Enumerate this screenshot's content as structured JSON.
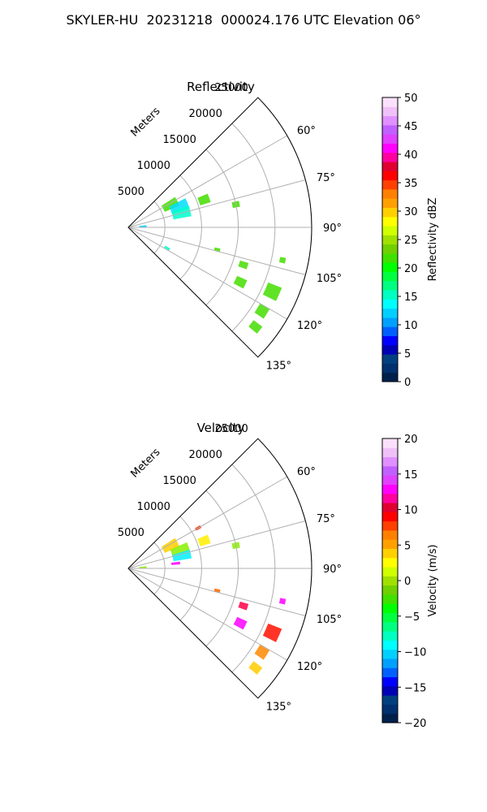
{
  "suptitle": "SKYLER-HU  20231218  000024.176 UTC Elevation 06°",
  "range_label": "Meters",
  "chart_data": [
    {
      "type": "ppi-sector",
      "title": "Reflectivity",
      "range_ticks": [
        5000,
        10000,
        15000,
        20000,
        25000
      ],
      "range_max": 25000,
      "azimuth_range": [
        45,
        135
      ],
      "azimuth_ticks": [
        "60°",
        "75°",
        "90°",
        "105°",
        "120°",
        "135°"
      ],
      "colorbar": {
        "label": "Reflectivity dBZ",
        "min": 0,
        "max": 50,
        "ticks": [
          "0",
          "5",
          "10",
          "15",
          "20",
          "25",
          "30",
          "35",
          "40",
          "45",
          "50"
        ],
        "colors": [
          "#00204c",
          "#00306e",
          "#004080",
          "#0000b4",
          "#0000ff",
          "#0060ff",
          "#00a0ff",
          "#00d0ff",
          "#00ffff",
          "#00ffc0",
          "#00ff80",
          "#00ff40",
          "#00ff00",
          "#40e000",
          "#70d000",
          "#a0e000",
          "#d0ff00",
          "#ffff00",
          "#ffd000",
          "#ffa000",
          "#ff8000",
          "#ff4000",
          "#ff0000",
          "#e00030",
          "#ff00a0",
          "#ff00ff",
          "#e040ff",
          "#c060ff",
          "#e090ff",
          "#f0c0f8",
          "#fbe0fb"
        ]
      },
      "echoes": [
        {
          "az": 62,
          "r": 6500,
          "dr": 2200,
          "daz": 10,
          "color": "#44dd00"
        },
        {
          "az": 68,
          "r": 7500,
          "dr": 2500,
          "daz": 10,
          "color": "#00ddff"
        },
        {
          "az": 75,
          "r": 7500,
          "dr": 2500,
          "daz": 10,
          "color": "#00ffcc"
        },
        {
          "az": 70,
          "r": 11000,
          "dr": 1500,
          "daz": 6,
          "color": "#44dd00"
        },
        {
          "az": 78,
          "r": 15000,
          "dr": 1000,
          "daz": 3,
          "color": "#44dd00"
        },
        {
          "az": 104,
          "r": 12500,
          "dr": 800,
          "daz": 2,
          "color": "#44dd00"
        },
        {
          "az": 108,
          "r": 16500,
          "dr": 1200,
          "daz": 3,
          "color": "#44dd00"
        },
        {
          "az": 116,
          "r": 17000,
          "dr": 1500,
          "daz": 4,
          "color": "#44dd00"
        },
        {
          "az": 114,
          "r": 21500,
          "dr": 2000,
          "daz": 5,
          "color": "#44dd00"
        },
        {
          "az": 122,
          "r": 21500,
          "dr": 1500,
          "daz": 4,
          "color": "#44dd00"
        },
        {
          "az": 128,
          "r": 22000,
          "dr": 1500,
          "daz": 3,
          "color": "#44dd00"
        },
        {
          "az": 102,
          "r": 21500,
          "dr": 800,
          "daz": 2,
          "color": "#44dd00"
        },
        {
          "az": 86,
          "r": 2000,
          "dr": 1000,
          "daz": 6,
          "color": "#00ccff"
        },
        {
          "az": 118,
          "r": 6000,
          "dr": 800,
          "daz": 3,
          "color": "#00ffcc"
        }
      ]
    },
    {
      "type": "ppi-sector",
      "title": "Velocity",
      "range_ticks": [
        5000,
        10000,
        15000,
        20000,
        25000
      ],
      "range_max": 25000,
      "azimuth_range": [
        45,
        135
      ],
      "azimuth_ticks": [
        "60°",
        "75°",
        "90°",
        "105°",
        "120°",
        "135°"
      ],
      "colorbar": {
        "label": "Velocity (m/s)",
        "min": -20,
        "max": 20,
        "ticks": [
          "−20",
          "−15",
          "−10",
          "−5",
          "0",
          "5",
          "10",
          "15",
          "20"
        ],
        "colors": [
          "#00204c",
          "#00306e",
          "#004080",
          "#0000b4",
          "#0000ff",
          "#0060ff",
          "#00a0ff",
          "#00d0ff",
          "#00ffff",
          "#00ffc0",
          "#00ff80",
          "#00ff40",
          "#00ff00",
          "#40e000",
          "#70d000",
          "#a0e000",
          "#d0ff00",
          "#ffff00",
          "#ffd000",
          "#ffa000",
          "#ff8000",
          "#ff4000",
          "#ff0000",
          "#e00030",
          "#ff00a0",
          "#ff00ff",
          "#e040ff",
          "#c060ff",
          "#e090ff",
          "#f0c0f8",
          "#fbe0fb"
        ]
      },
      "echoes": [
        {
          "az": 62,
          "r": 6500,
          "dr": 2200,
          "daz": 10,
          "color": "#ffcc00"
        },
        {
          "az": 70,
          "r": 7500,
          "dr": 2500,
          "daz": 8,
          "color": "#88ee00"
        },
        {
          "az": 77,
          "r": 7500,
          "dr": 2500,
          "daz": 8,
          "color": "#00eeff"
        },
        {
          "az": 84,
          "r": 6500,
          "dr": 1200,
          "daz": 3,
          "color": "#ff00ff"
        },
        {
          "az": 70,
          "r": 11000,
          "dr": 1500,
          "daz": 6,
          "color": "#ffee00"
        },
        {
          "az": 78,
          "r": 15000,
          "dr": 1000,
          "daz": 3,
          "color": "#88ee00"
        },
        {
          "az": 60,
          "r": 11000,
          "dr": 800,
          "daz": 2,
          "color": "#ff2200"
        },
        {
          "az": 104,
          "r": 12500,
          "dr": 800,
          "daz": 2,
          "color": "#ff6600"
        },
        {
          "az": 108,
          "r": 16500,
          "dr": 1200,
          "daz": 3,
          "color": "#ff0044"
        },
        {
          "az": 116,
          "r": 17000,
          "dr": 1500,
          "daz": 4,
          "color": "#ff00ff"
        },
        {
          "az": 114,
          "r": 21500,
          "dr": 2000,
          "daz": 5,
          "color": "#ff1100"
        },
        {
          "az": 122,
          "r": 21500,
          "dr": 1500,
          "daz": 4,
          "color": "#ff8800"
        },
        {
          "az": 128,
          "r": 22000,
          "dr": 1500,
          "daz": 3,
          "color": "#ffcc00"
        },
        {
          "az": 102,
          "r": 21500,
          "dr": 800,
          "daz": 2,
          "color": "#ff00ff"
        },
        {
          "az": 86,
          "r": 2000,
          "dr": 1000,
          "daz": 6,
          "color": "#88ee00"
        }
      ]
    }
  ]
}
